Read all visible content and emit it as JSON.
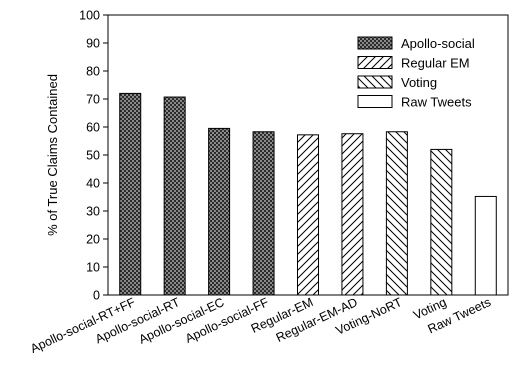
{
  "chart_data": {
    "type": "bar",
    "title": "",
    "xlabel": "",
    "ylabel": "% of True Claims Contained",
    "ylim": [
      0,
      100
    ],
    "yticks": [
      0,
      10,
      20,
      30,
      40,
      50,
      60,
      70,
      80,
      90,
      100
    ],
    "grid": false,
    "legend_position": "top-right",
    "categories": [
      "Apollo-social-RT+FF",
      "Apollo-social-RT",
      "Apollo-social-EC",
      "Apollo-social-FF",
      "Regular-EM",
      "Regular-EM-AD",
      "Voting-NoRT",
      "Voting",
      "Raw Tweets"
    ],
    "values": [
      72,
      70.7,
      59.5,
      58.3,
      57.2,
      57.6,
      58.3,
      52,
      35.2
    ],
    "groups": [
      "Apollo-social",
      "Apollo-social",
      "Apollo-social",
      "Apollo-social",
      "Regular EM",
      "Regular EM",
      "Voting",
      "Voting",
      "Raw Tweets"
    ],
    "legend": [
      {
        "label": "Apollo-social",
        "pattern": "crosshatch-icon"
      },
      {
        "label": "Regular EM",
        "pattern": "forward-diagonal-hatch-icon"
      },
      {
        "label": "Voting",
        "pattern": "backward-diagonal-hatch-icon"
      },
      {
        "label": "Raw Tweets",
        "pattern": "solid-white-icon"
      }
    ],
    "colors": {
      "stroke": "#000000",
      "background": "#ffffff",
      "crosshatch_fill": "#2b2b2b"
    }
  }
}
